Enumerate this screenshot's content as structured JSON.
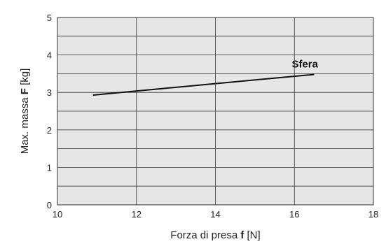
{
  "chart_data": {
    "type": "line",
    "xlabel": "Forza di presa",
    "xlabel_symbol": "f",
    "xlabel_unit": "[N]",
    "ylabel": "Max. massa",
    "ylabel_symbol": "F",
    "ylabel_unit": "[kg]",
    "xlim": [
      10,
      18
    ],
    "ylim": [
      0,
      5
    ],
    "x_ticks": [
      10,
      12,
      14,
      16,
      18
    ],
    "y_ticks": [
      0,
      1,
      2,
      3,
      4,
      5
    ],
    "grid": true,
    "series": [
      {
        "name": "Sfera",
        "x": [
          10.9,
          16.5
        ],
        "y": [
          2.93,
          3.48
        ]
      }
    ],
    "colors": {
      "plot_background": "#e6e6e6",
      "grid": "#333333",
      "line": "#111111"
    }
  }
}
